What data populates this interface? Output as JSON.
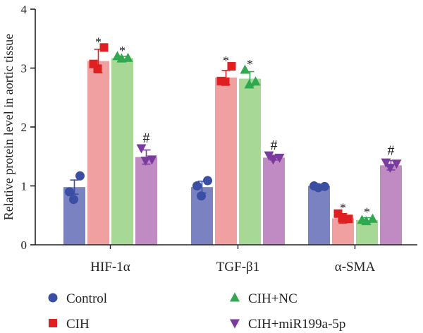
{
  "chart_data": {
    "type": "bar",
    "title": "",
    "xlabel": "",
    "ylabel": "Relative protein level in aortic tissue",
    "ylim": [
      0,
      4
    ],
    "yticks": [
      "0",
      "1",
      "2",
      "3",
      "4"
    ],
    "grid": false,
    "legend_position": "bottom",
    "categories": [
      "HIF-1α",
      "TGF-β1",
      "α-SMA"
    ],
    "series": [
      {
        "name": "Control",
        "color": "#7b82c2",
        "marker_color": "#3a4ea3",
        "marker": "circle",
        "values": [
          0.98,
          0.98,
          1.0
        ],
        "errors": [
          0.12,
          0.1,
          0.02
        ],
        "points": [
          [
            0.9,
            1.17,
            0.77
          ],
          [
            1.0,
            1.09,
            0.83
          ],
          [
            1.0,
            0.99,
            0.97
          ]
        ],
        "annotations": [
          "",
          "",
          ""
        ]
      },
      {
        "name": "CIH",
        "color": "#f0a0a0",
        "marker_color": "#e02020",
        "marker": "square",
        "values": [
          3.12,
          2.84,
          0.45
        ],
        "errors": [
          0.2,
          0.12,
          0.08
        ],
        "points": [
          [
            3.07,
            3.35,
            2.99
          ],
          [
            2.78,
            3.03,
            2.77
          ],
          [
            0.53,
            0.44,
            0.45
          ]
        ],
        "annotations": [
          "*",
          "*",
          "*"
        ]
      },
      {
        "name": "CIH+NC",
        "color": "#a7d896",
        "marker_color": "#2fa84f",
        "marker": "triangle-up",
        "values": [
          3.17,
          2.82,
          0.42
        ],
        "errors": [
          0.03,
          0.12,
          0.04
        ],
        "points": [
          [
            3.2,
            3.17,
            3.16
          ],
          [
            2.97,
            2.77,
            2.72
          ],
          [
            0.42,
            0.44,
            0.4
          ]
        ],
        "annotations": [
          "*",
          "*",
          "*"
        ]
      },
      {
        "name": "CIH+miR199a-5p",
        "color": "#c08bc2",
        "marker_color": "#7a3a9e",
        "marker": "triangle-down",
        "values": [
          1.49,
          1.48,
          1.35
        ],
        "errors": [
          0.12,
          0.04,
          0.08
        ],
        "points": [
          [
            1.64,
            1.45,
            1.43
          ],
          [
            1.52,
            1.48,
            1.45
          ],
          [
            1.4,
            1.38,
            1.31
          ]
        ],
        "annotations": [
          "#",
          "#",
          "#"
        ]
      }
    ]
  }
}
